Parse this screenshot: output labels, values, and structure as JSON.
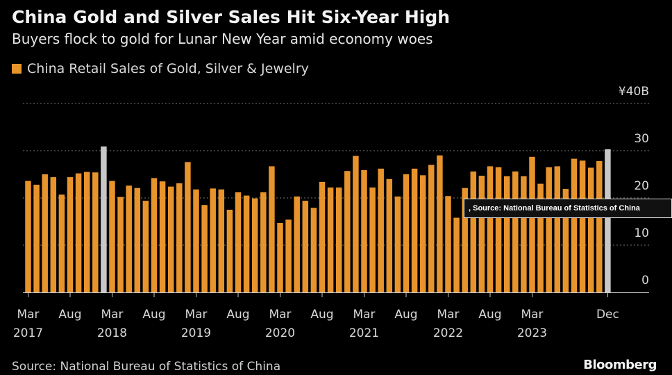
{
  "header": {
    "title": "China Gold and Silver Sales Hit Six-Year High",
    "subtitle": "Buyers flock to gold for Lunar New Year amid economy woes"
  },
  "footer": {
    "source": "Source: National Bureau of Statistics of China",
    "brand": "Bloomberg"
  },
  "tooltip": {
    "text": ", Source: National Bureau of Statistics of China"
  },
  "colors": {
    "bar": "#e8942c",
    "highlight": "#c8c8c8",
    "background": "#000000"
  },
  "chart_data": {
    "type": "bar",
    "title": "China Gold and Silver Sales Hit Six-Year High",
    "subtitle": "Buyers flock to gold for Lunar New Year amid economy woes",
    "legend": [
      {
        "name": "China Retail Sales of Gold, Silver & Jewelry",
        "color": "#e8942c"
      }
    ],
    "legend_position": "top-left",
    "ylim": [
      0,
      40
    ],
    "yticks": [
      0,
      10,
      20,
      30,
      40
    ],
    "ytick_labels": [
      "0",
      "10",
      "20",
      "30",
      "¥40B"
    ],
    "grid": true,
    "x_ticks": [
      {
        "index": 0,
        "month": "Mar",
        "year": "2017"
      },
      {
        "index": 5,
        "month": "Aug",
        "year": ""
      },
      {
        "index": 10,
        "month": "Mar",
        "year": "2018"
      },
      {
        "index": 15,
        "month": "Aug",
        "year": ""
      },
      {
        "index": 20,
        "month": "Mar",
        "year": "2019"
      },
      {
        "index": 25,
        "month": "Aug",
        "year": ""
      },
      {
        "index": 30,
        "month": "Mar",
        "year": "2020"
      },
      {
        "index": 35,
        "month": "Aug",
        "year": ""
      },
      {
        "index": 40,
        "month": "Mar",
        "year": "2021"
      },
      {
        "index": 45,
        "month": "Aug",
        "year": ""
      },
      {
        "index": 50,
        "month": "Mar",
        "year": "2022"
      },
      {
        "index": 55,
        "month": "Aug",
        "year": ""
      },
      {
        "index": 60,
        "month": "Mar",
        "year": "2023"
      },
      {
        "index": 69,
        "month": "Dec",
        "year": ""
      }
    ],
    "highlighted": [
      9,
      69
    ],
    "values": [
      23.6,
      22.8,
      25.0,
      24.4,
      20.7,
      24.4,
      25.2,
      25.5,
      25.4,
      30.9,
      23.6,
      20.2,
      22.6,
      22.1,
      19.4,
      24.2,
      23.5,
      22.4,
      23.1,
      27.6,
      21.8,
      18.5,
      22.0,
      21.8,
      17.5,
      21.2,
      20.5,
      19.9,
      21.2,
      26.7,
      14.7,
      15.4,
      20.3,
      19.4,
      17.9,
      23.4,
      22.2,
      22.2,
      25.7,
      28.9,
      25.9,
      22.2,
      26.2,
      24.0,
      20.3,
      25.0,
      26.2,
      24.8,
      27.0,
      29.0,
      20.4,
      15.8,
      22.1,
      25.6,
      24.7,
      26.7,
      26.5,
      24.6,
      25.6,
      24.6,
      28.7,
      23.0,
      26.5,
      26.7,
      21.9,
      28.3,
      27.9,
      26.4,
      27.8,
      30.3
    ]
  }
}
